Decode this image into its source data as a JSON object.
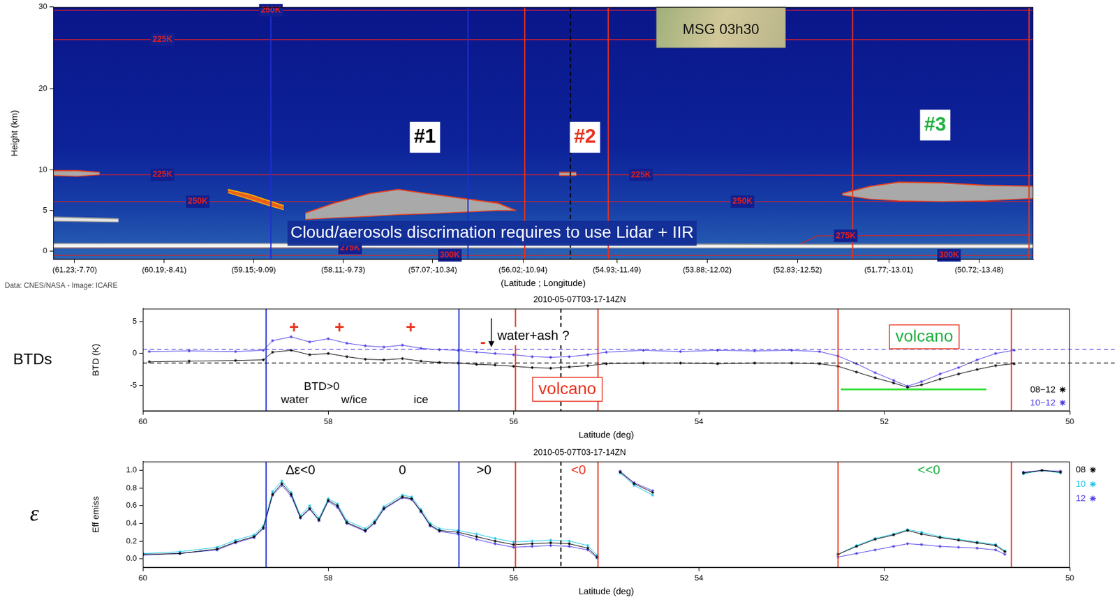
{
  "chart_data": [
    {
      "type": "area",
      "x_label": "(Latitude ; Longitude)",
      "y_label": "Height (km)",
      "credit": "Data: CNES/NASA - Image: ICARE",
      "xlim": [
        61.48,
        50.09
      ],
      "xticks": [
        {
          "value": 61.23,
          "label": "(61.23;-7.70)"
        },
        {
          "value": 60.19,
          "label": "(60.19;-8.41)"
        },
        {
          "value": 59.15,
          "label": "(59.15;-9.09)"
        },
        {
          "value": 58.11,
          "label": "(58.11;-9.73)"
        },
        {
          "value": 57.07,
          "label": "(57.07;-10.34)"
        },
        {
          "value": 56.02,
          "label": "(56.02;-10.94)"
        },
        {
          "value": 54.93,
          "label": "(54.93;-11.49)"
        },
        {
          "value": 53.88,
          "label": "(53.88;-12.02)"
        },
        {
          "value": 52.83,
          "label": "(52.83;-12.52)"
        },
        {
          "value": 51.77,
          "label": "(51.77;-13.01)"
        },
        {
          "value": 50.72,
          "label": "(50.72;-13.48)"
        }
      ],
      "ylim": [
        -1,
        30
      ],
      "yticks": [
        0,
        5,
        10,
        20,
        30
      ],
      "grid": false,
      "layers": [
        {
          "lat": [
            61.48,
            61.2,
            60.94
          ],
          "top": [
            9.9,
            9.9,
            9.7
          ],
          "bottom": [
            9.3,
            9.2,
            9.4
          ],
          "color": "#a9a9a9",
          "edge_color": "#e8401c"
        },
        {
          "lat": [
            59.45,
            59.2,
            59.0,
            58.8
          ],
          "top": [
            7.6,
            7.0,
            6.3,
            5.6
          ],
          "bottom": [
            7.2,
            6.4,
            5.7,
            5.1
          ],
          "color": "#e8601c",
          "edge_color": "#ffb000"
        },
        {
          "lat": [
            58.55,
            58.22,
            57.8,
            57.47,
            57.14,
            56.72,
            56.31,
            56.1
          ],
          "top": [
            4.7,
            5.9,
            7.1,
            7.6,
            7.1,
            6.5,
            5.9,
            5.0
          ],
          "bottom": [
            3.9,
            4.1,
            4.3,
            4.5,
            4.6,
            4.8,
            5.0,
            5.0
          ],
          "color": "#a9a9a9",
          "edge_color": "#e8401c"
        },
        {
          "lat": [
            61.48,
            60.72
          ],
          "top": [
            4.2,
            4.0
          ],
          "bottom": [
            3.7,
            3.6
          ],
          "color": "#e6e6e6",
          "edge_color": "#9a9a9a"
        },
        {
          "lat": [
            61.48,
            58.8,
            58.4,
            55.0,
            52.5,
            50.09
          ],
          "top": [
            0.95,
            0.95,
            0.9,
            0.9,
            0.85,
            0.85
          ],
          "bottom": [
            0.45,
            0.45,
            0.45,
            0.4,
            0.4,
            0.4
          ],
          "color": "#f2f2f2",
          "edge_color": "#9a9a9a"
        },
        {
          "lat": [
            55.6,
            55.4
          ],
          "top": [
            9.7,
            9.7
          ],
          "bottom": [
            9.3,
            9.3
          ],
          "color": "#a9a9a9",
          "edge_color": "#e8401c"
        },
        {
          "lat": [
            52.31,
            51.98,
            51.65,
            51.15,
            50.65,
            50.09
          ],
          "top": [
            7.1,
            8.0,
            8.5,
            8.4,
            8.1,
            8.0
          ],
          "bottom": [
            6.9,
            6.4,
            6.2,
            6.1,
            6.2,
            6.5
          ],
          "color": "#a9a9a9",
          "edge_color": "#e8401c"
        }
      ],
      "isotherms": [
        {
          "label": "225K",
          "lat": [
            61.48,
            50.09
          ],
          "height": [
            26,
            26
          ],
          "label_lat": [
            60.21
          ],
          "color": "#e02020"
        },
        {
          "label": "250K",
          "lat": [
            61.48,
            50.09
          ],
          "height": [
            29.6,
            29.6
          ],
          "label_lat": [
            58.95
          ],
          "color": "#e02020"
        },
        {
          "label": "225K",
          "lat": [
            61.48,
            55.0,
            50.09
          ],
          "height": [
            9.4,
            9.4,
            9.3
          ],
          "label_lat": [
            60.21,
            54.65
          ],
          "color": "#e02020"
        },
        {
          "label": "250K",
          "lat": [
            61.48,
            50.09
          ],
          "height": [
            6.1,
            6.1
          ],
          "label_lat": [
            59.8,
            53.47
          ],
          "color": "#e02020"
        },
        {
          "label": "275K",
          "lat": [
            61.48,
            52.9,
            52.6,
            50.09
          ],
          "height": [
            0.4,
            0.4,
            1.9,
            2.0
          ],
          "label_lat": [
            58.03,
            52.27
          ],
          "color": "#e02020"
        },
        {
          "label": "300K",
          "lat": [
            61.48,
            50.09
          ],
          "height": [
            -0.5,
            -0.5
          ],
          "label_lat": [
            56.87,
            51.07
          ],
          "color": "#e02020"
        }
      ],
      "vlines": [
        {
          "x": 58.95,
          "color": "#1f2fd0",
          "line_style": "solid"
        },
        {
          "x": 56.66,
          "color": "#1f2fd0",
          "line_style": "solid"
        },
        {
          "x": 56.0,
          "color": "#e8321e",
          "line_style": "solid"
        },
        {
          "x": 55.03,
          "color": "#e8321e",
          "line_style": "solid"
        },
        {
          "x": 52.19,
          "color": "#e8321e",
          "line_style": "solid"
        },
        {
          "x": 50.14,
          "color": "#e8321e",
          "line_style": "solid"
        },
        {
          "x": 55.47,
          "color": "#000000",
          "line_style": "dashed"
        }
      ],
      "inset": {
        "text": "MSG 03h30",
        "lat": [
          54.47,
          52.97
        ],
        "height": [
          25,
          30
        ]
      },
      "annotations": [
        {
          "text": "#1",
          "x": 57.16,
          "y": 14,
          "color": "#000000",
          "style": "heading"
        },
        {
          "text": "#2",
          "x": 55.3,
          "y": 14,
          "color": "#e8321e",
          "style": "heading"
        },
        {
          "text": "#3",
          "x": 51.23,
          "y": 15.5,
          "color": "#20b040",
          "style": "heading"
        },
        {
          "text": "Cloud/aerosols discrimation requires to use Lidar + IIR",
          "x": 56.38,
          "y": 2.2,
          "color": "#ffffff",
          "style": "banner"
        }
      ]
    },
    {
      "type": "line",
      "title": "2010-05-07T03-17-14ZN",
      "side_label": "BTDs",
      "x_label": "Latitude (deg)",
      "y_label": "BTD (K)",
      "xlim": [
        60,
        50
      ],
      "xticks": [
        60,
        58,
        56,
        54,
        52,
        50
      ],
      "ylim": [
        -9,
        7
      ],
      "yticks": [
        -5,
        0,
        5
      ],
      "grid": false,
      "legend": "lower right",
      "marker": "star",
      "line_style": "solid",
      "x": [
        59.93,
        59.5,
        59.0,
        58.7,
        58.6,
        58.4,
        58.2,
        58.0,
        57.8,
        57.6,
        57.4,
        57.2,
        57.0,
        56.8,
        56.6,
        56.4,
        56.2,
        56.0,
        55.8,
        55.6,
        55.4,
        55.2,
        55.0,
        54.6,
        54.2,
        53.8,
        53.4,
        53.0,
        52.7,
        52.5,
        52.3,
        52.1,
        51.9,
        51.75,
        51.6,
        51.4,
        51.2,
        51.0,
        50.8,
        50.6
      ],
      "series": [
        {
          "name": "08−12",
          "color": "#000000",
          "values": [
            -1.3,
            -1.2,
            -1.1,
            -1.0,
            0.2,
            0.5,
            -0.2,
            0.0,
            -0.5,
            -0.9,
            -1.0,
            -0.8,
            -1.2,
            -1.4,
            -1.5,
            -1.7,
            -1.8,
            -2.0,
            -2.2,
            -2.3,
            -2.1,
            -1.9,
            -1.6,
            -1.5,
            -1.5,
            -1.6,
            -1.5,
            -1.5,
            -1.6,
            -2.0,
            -2.9,
            -3.8,
            -4.6,
            -5.3,
            -4.9,
            -4.0,
            -3.2,
            -2.5,
            -1.9,
            -1.6
          ]
        },
        {
          "name": "10−12",
          "color": "#4b3be6",
          "values": [
            0.3,
            0.4,
            0.3,
            0.5,
            2.0,
            2.6,
            1.8,
            2.3,
            1.6,
            1.2,
            1.0,
            1.3,
            0.8,
            0.6,
            0.5,
            0.2,
            0.0,
            -0.2,
            -0.5,
            -0.6,
            -0.5,
            -0.2,
            0.2,
            0.5,
            0.3,
            0.5,
            0.4,
            0.5,
            0.3,
            -0.4,
            -1.6,
            -3.0,
            -4.2,
            -5.1,
            -4.4,
            -3.2,
            -2.2,
            -1.0,
            0.0,
            0.5
          ]
        }
      ],
      "vlines": [
        {
          "x": 58.67,
          "color": "#1f2fd0",
          "line_style": "solid"
        },
        {
          "x": 56.59,
          "color": "#1f2fd0",
          "line_style": "solid"
        },
        {
          "x": 55.98,
          "color": "#e8321e",
          "line_style": "solid"
        },
        {
          "x": 55.09,
          "color": "#e8321e",
          "line_style": "solid"
        },
        {
          "x": 52.5,
          "color": "#e8321e",
          "line_style": "solid"
        },
        {
          "x": 50.63,
          "color": "#e8321e",
          "line_style": "solid"
        },
        {
          "x": 55.49,
          "color": "#000000",
          "line_style": "dashed"
        }
      ],
      "hlines": [
        {
          "y": 0.65,
          "color": "#4b3be6",
          "line_style": "dashed"
        },
        {
          "y": -1.5,
          "color": "#000000",
          "line_style": "dashed"
        },
        {
          "y": -5.6,
          "x": [
            52.47,
            50.9
          ],
          "color": "#33dd33",
          "line_style": "solid"
        }
      ],
      "arrows": [
        {
          "x": 56.24,
          "y": [
            5.5,
            1.0
          ],
          "color": "#000000"
        }
      ],
      "annotations": [
        {
          "text": "+",
          "x": 58.37,
          "y": 4.0,
          "color": "#e8321e",
          "style": "mark"
        },
        {
          "text": "+",
          "x": 57.88,
          "y": 4.0,
          "color": "#e8321e",
          "style": "mark"
        },
        {
          "text": "+",
          "x": 57.11,
          "y": 4.0,
          "color": "#e8321e",
          "style": "mark"
        },
        {
          "text": "-",
          "x": 56.33,
          "y": 1.6,
          "color": "#e8321e",
          "style": "mark"
        },
        {
          "text": "water+ash ?",
          "x": 56.24,
          "y": 2.7,
          "color": "#000000",
          "style": "note",
          "align": "left"
        },
        {
          "text": "volcano",
          "x": 55.42,
          "y": -5.6,
          "color": "#e8321e",
          "style": "box",
          "box_color": "#e8321e"
        },
        {
          "text": "volcano",
          "x": 51.57,
          "y": 2.6,
          "color": "#20b040",
          "style": "box",
          "box_color": "#e8321e"
        },
        {
          "text": "BTD>0",
          "x": 58.07,
          "y": -5.2,
          "color": "#000000",
          "style": "small"
        },
        {
          "text": "water",
          "x": 58.36,
          "y": -7.3,
          "color": "#000000",
          "style": "small"
        },
        {
          "text": "w/ice",
          "x": 57.72,
          "y": -7.3,
          "color": "#000000",
          "style": "small"
        },
        {
          "text": "ice",
          "x": 57.0,
          "y": -7.3,
          "color": "#000000",
          "style": "small"
        }
      ]
    },
    {
      "type": "line",
      "title": "2010-05-07T03-17-14ZN",
      "side_label": "ε",
      "x_label": "Latitude (deg)",
      "y_label": "Eff emiss",
      "xlim": [
        60,
        50
      ],
      "xticks": [
        60,
        58,
        56,
        54,
        52,
        50
      ],
      "ylim": [
        -0.1,
        1.1
      ],
      "yticks": [
        {
          "value": 0,
          "label": "0.0"
        },
        0.2,
        0.4,
        0.6,
        0.8,
        {
          "value": 1,
          "label": "1.0"
        }
      ],
      "grid": false,
      "legend": "right",
      "marker": "star",
      "line_style": "solid",
      "x": [
        60.0,
        59.6,
        59.2,
        59.0,
        58.8,
        58.7,
        58.6,
        58.5,
        58.4,
        58.3,
        58.2,
        58.1,
        58.0,
        57.9,
        57.8,
        57.6,
        57.5,
        57.4,
        57.2,
        57.1,
        57.0,
        56.9,
        56.8,
        56.6,
        56.4,
        56.2,
        56.0,
        55.8,
        55.6,
        55.4,
        55.2,
        55.1,
        55.0,
        54.85,
        54.7,
        54.5,
        53.5,
        52.5,
        52.3,
        52.1,
        51.9,
        51.75,
        51.6,
        51.4,
        51.2,
        51.0,
        50.8,
        50.7,
        50.65,
        50.5,
        50.3,
        50.1
      ],
      "series": [
        {
          "name": "08",
          "color": "#000000",
          "values": [
            0.05,
            0.06,
            0.11,
            0.19,
            0.25,
            0.35,
            0.73,
            0.85,
            0.73,
            0.47,
            0.57,
            0.44,
            0.66,
            0.6,
            0.41,
            0.32,
            0.41,
            0.57,
            0.7,
            0.68,
            0.54,
            0.38,
            0.32,
            0.3,
            0.25,
            0.2,
            0.16,
            0.17,
            0.18,
            0.17,
            0.12,
            0.02,
            null,
            0.98,
            0.85,
            0.75,
            null,
            0.05,
            0.14,
            0.22,
            0.27,
            0.32,
            0.28,
            0.24,
            0.21,
            0.18,
            0.15,
            0.08,
            null,
            0.97,
            1.0,
            0.98
          ]
        },
        {
          "name": "10",
          "color": "#16c6e8",
          "values": [
            0.06,
            0.08,
            0.13,
            0.21,
            0.27,
            0.37,
            0.76,
            0.88,
            0.75,
            0.49,
            0.6,
            0.46,
            0.68,
            0.62,
            0.43,
            0.34,
            0.43,
            0.59,
            0.72,
            0.7,
            0.56,
            0.4,
            0.34,
            0.32,
            0.28,
            0.23,
            0.19,
            0.2,
            0.21,
            0.2,
            0.15,
            0.04,
            null,
            0.97,
            0.83,
            0.72,
            null,
            0.05,
            0.15,
            0.23,
            0.28,
            0.33,
            0.3,
            0.25,
            0.22,
            0.19,
            0.16,
            0.09,
            null,
            0.96,
            1.0,
            0.97
          ]
        },
        {
          "name": "12",
          "color": "#4b3be6",
          "values": [
            0.04,
            0.06,
            0.1,
            0.18,
            0.24,
            0.34,
            0.72,
            0.83,
            0.71,
            0.46,
            0.56,
            0.43,
            0.65,
            0.58,
            0.4,
            0.31,
            0.4,
            0.56,
            0.69,
            0.67,
            0.53,
            0.37,
            0.31,
            0.28,
            0.22,
            0.17,
            0.13,
            0.14,
            0.15,
            0.14,
            0.1,
            0.01,
            null,
            0.99,
            0.86,
            0.77,
            null,
            0.02,
            0.06,
            0.1,
            0.14,
            0.17,
            0.16,
            0.14,
            0.13,
            0.12,
            0.1,
            0.05,
            null,
            0.98,
            1.0,
            0.99
          ]
        }
      ],
      "vlines": [
        {
          "x": 58.67,
          "color": "#1f2fd0",
          "line_style": "solid"
        },
        {
          "x": 56.59,
          "color": "#1f2fd0",
          "line_style": "solid"
        },
        {
          "x": 55.98,
          "color": "#e8321e",
          "line_style": "solid"
        },
        {
          "x": 55.09,
          "color": "#e8321e",
          "line_style": "solid"
        },
        {
          "x": 52.5,
          "color": "#e8321e",
          "line_style": "solid"
        },
        {
          "x": 50.63,
          "color": "#e8321e",
          "line_style": "solid"
        },
        {
          "x": 55.49,
          "color": "#000000",
          "line_style": "dashed"
        }
      ],
      "annotations": [
        {
          "text": "Δε<0",
          "x": 58.3,
          "y": 1.0,
          "color": "#000000",
          "style": "note"
        },
        {
          "text": "0",
          "x": 57.2,
          "y": 1.0,
          "color": "#000000",
          "style": "note"
        },
        {
          "text": ">0",
          "x": 56.32,
          "y": 1.0,
          "color": "#000000",
          "style": "note"
        },
        {
          "text": "<0",
          "x": 55.3,
          "y": 1.0,
          "color": "#e8321e",
          "style": "note"
        },
        {
          "text": "<<0",
          "x": 51.52,
          "y": 1.0,
          "color": "#20b040",
          "style": "note"
        }
      ]
    }
  ]
}
